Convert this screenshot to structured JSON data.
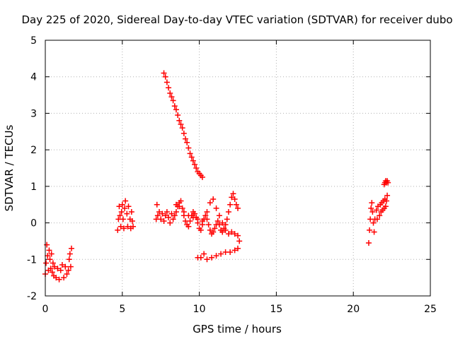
{
  "chart_data": {
    "type": "scatter",
    "title": "Day 225 of 2020, Sidereal Day-to-day VTEC variation (SDTVAR) for receiver dubo",
    "xlabel": "GPS time / hours",
    "ylabel": "SDTVAR / TECUs",
    "xlim": [
      0,
      25
    ],
    "ylim": [
      -2,
      5
    ],
    "xticks": [
      "0",
      "5",
      "10",
      "15",
      "20",
      "25"
    ],
    "yticks": [
      "-2",
      "-1",
      "0",
      "1",
      "2",
      "3",
      "4",
      "5"
    ],
    "grid": true,
    "marker": "+",
    "series": [
      {
        "name": "SDTVAR",
        "color": "#ff0000",
        "points": [
          [
            0.0,
            -1.4
          ],
          [
            0.05,
            -1.1
          ],
          [
            0.1,
            -0.6
          ],
          [
            0.15,
            -0.9
          ],
          [
            0.2,
            -1.3
          ],
          [
            0.25,
            -0.75
          ],
          [
            0.3,
            -1.0
          ],
          [
            0.35,
            -1.25
          ],
          [
            0.4,
            -0.85
          ],
          [
            0.45,
            -1.35
          ],
          [
            0.5,
            -1.1
          ],
          [
            0.55,
            -1.45
          ],
          [
            0.6,
            -1.2
          ],
          [
            0.7,
            -1.5
          ],
          [
            0.8,
            -1.25
          ],
          [
            0.9,
            -1.55
          ],
          [
            1.0,
            -1.3
          ],
          [
            1.1,
            -1.15
          ],
          [
            1.2,
            -1.5
          ],
          [
            1.3,
            -1.2
          ],
          [
            1.4,
            -1.4
          ],
          [
            1.5,
            -1.3
          ],
          [
            1.55,
            -1.0
          ],
          [
            1.6,
            -0.85
          ],
          [
            1.65,
            -1.2
          ],
          [
            1.7,
            -0.7
          ],
          [
            4.7,
            -0.2
          ],
          [
            4.75,
            0.1
          ],
          [
            4.8,
            0.45
          ],
          [
            4.85,
            0.2
          ],
          [
            4.9,
            -0.1
          ],
          [
            4.95,
            0.3
          ],
          [
            5.0,
            0.5
          ],
          [
            5.05,
            0.1
          ],
          [
            5.1,
            -0.15
          ],
          [
            5.15,
            0.4
          ],
          [
            5.2,
            0.6
          ],
          [
            5.3,
            0.25
          ],
          [
            5.35,
            -0.1
          ],
          [
            5.4,
            0.45
          ],
          [
            5.5,
            0.1
          ],
          [
            5.55,
            -0.15
          ],
          [
            5.6,
            0.3
          ],
          [
            5.65,
            0.05
          ],
          [
            5.7,
            -0.1
          ],
          [
            7.2,
            0.1
          ],
          [
            7.25,
            0.5
          ],
          [
            7.3,
            0.2
          ],
          [
            7.4,
            0.3
          ],
          [
            7.5,
            0.1
          ],
          [
            7.6,
            0.25
          ],
          [
            7.7,
            0.05
          ],
          [
            7.8,
            0.2
          ],
          [
            7.9,
            0.3
          ],
          [
            8.0,
            0.15
          ],
          [
            8.1,
            0.0
          ],
          [
            8.2,
            0.25
          ],
          [
            8.3,
            0.1
          ],
          [
            8.4,
            0.2
          ],
          [
            8.5,
            0.3
          ],
          [
            8.6,
            0.45
          ],
          [
            8.7,
            0.55
          ],
          [
            8.8,
            0.6
          ],
          [
            8.9,
            0.4
          ],
          [
            9.0,
            0.2
          ],
          [
            9.1,
            0.05
          ],
          [
            9.2,
            -0.05
          ],
          [
            9.3,
            -0.1
          ],
          [
            9.4,
            0.05
          ],
          [
            9.5,
            0.2
          ],
          [
            9.6,
            0.3
          ],
          [
            9.7,
            0.25
          ],
          [
            9.8,
            0.15
          ],
          [
            9.9,
            0.0
          ],
          [
            10.0,
            -0.15
          ],
          [
            10.1,
            -0.2
          ],
          [
            10.2,
            -0.05
          ],
          [
            10.3,
            0.1
          ],
          [
            10.4,
            0.2
          ],
          [
            10.5,
            0.1
          ],
          [
            10.6,
            -0.05
          ],
          [
            10.7,
            -0.2
          ],
          [
            10.8,
            -0.3
          ],
          [
            10.9,
            -0.25
          ],
          [
            11.0,
            -0.15
          ],
          [
            11.1,
            -0.05
          ],
          [
            11.2,
            0.05
          ],
          [
            11.3,
            -0.05
          ],
          [
            11.4,
            -0.2
          ],
          [
            11.5,
            -0.25
          ],
          [
            11.6,
            -0.15
          ],
          [
            11.7,
            -0.05
          ],
          [
            11.8,
            0.1
          ],
          [
            11.9,
            0.3
          ],
          [
            12.0,
            0.5
          ],
          [
            12.1,
            0.7
          ],
          [
            12.2,
            0.8
          ],
          [
            12.3,
            0.65
          ],
          [
            12.4,
            0.5
          ],
          [
            12.5,
            0.4
          ],
          [
            8.5,
            0.5
          ],
          [
            8.7,
            0.45
          ],
          [
            9.0,
            0.3
          ],
          [
            9.3,
            0.2
          ],
          [
            9.6,
            0.15
          ],
          [
            9.9,
            0.1
          ],
          [
            10.2,
            0.05
          ],
          [
            10.5,
            0.3
          ],
          [
            10.7,
            0.55
          ],
          [
            10.9,
            0.65
          ],
          [
            11.1,
            0.4
          ],
          [
            11.3,
            0.2
          ],
          [
            11.5,
            0.0
          ],
          [
            11.7,
            -0.2
          ],
          [
            11.9,
            -0.3
          ],
          [
            12.1,
            -0.25
          ],
          [
            12.3,
            -0.3
          ],
          [
            12.5,
            -0.35
          ],
          [
            12.6,
            -0.5
          ],
          [
            12.5,
            -0.7
          ],
          [
            12.3,
            -0.75
          ],
          [
            12.0,
            -0.8
          ],
          [
            11.7,
            -0.8
          ],
          [
            11.4,
            -0.85
          ],
          [
            11.1,
            -0.9
          ],
          [
            10.8,
            -0.95
          ],
          [
            10.5,
            -1.0
          ],
          [
            10.3,
            -0.85
          ],
          [
            10.1,
            -0.95
          ],
          [
            9.9,
            -0.95
          ],
          [
            7.7,
            4.1
          ],
          [
            7.8,
            4.0
          ],
          [
            7.9,
            3.85
          ],
          [
            8.0,
            3.7
          ],
          [
            8.1,
            3.55
          ],
          [
            8.2,
            3.45
          ],
          [
            8.3,
            3.35
          ],
          [
            8.4,
            3.2
          ],
          [
            8.5,
            3.1
          ],
          [
            8.6,
            2.95
          ],
          [
            8.7,
            2.8
          ],
          [
            8.8,
            2.7
          ],
          [
            8.9,
            2.6
          ],
          [
            9.0,
            2.45
          ],
          [
            9.1,
            2.3
          ],
          [
            9.2,
            2.2
          ],
          [
            9.3,
            2.05
          ],
          [
            9.4,
            1.9
          ],
          [
            9.5,
            1.8
          ],
          [
            9.6,
            1.7
          ],
          [
            9.7,
            1.6
          ],
          [
            9.8,
            1.5
          ],
          [
            9.9,
            1.4
          ],
          [
            10.0,
            1.35
          ],
          [
            10.1,
            1.3
          ],
          [
            10.2,
            1.25
          ],
          [
            21.0,
            -0.55
          ],
          [
            21.05,
            -0.2
          ],
          [
            21.1,
            0.1
          ],
          [
            21.15,
            0.4
          ],
          [
            21.2,
            0.55
          ],
          [
            21.25,
            0.3
          ],
          [
            21.3,
            0.0
          ],
          [
            21.35,
            -0.25
          ],
          [
            21.4,
            0.1
          ],
          [
            21.5,
            0.35
          ],
          [
            21.55,
            0.1
          ],
          [
            21.6,
            0.45
          ],
          [
            21.7,
            0.2
          ],
          [
            21.75,
            0.5
          ],
          [
            21.8,
            0.3
          ],
          [
            21.85,
            0.55
          ],
          [
            21.9,
            0.35
          ],
          [
            21.95,
            0.6
          ],
          [
            22.0,
            0.4
          ],
          [
            22.05,
            0.65
          ],
          [
            22.1,
            0.45
          ],
          [
            22.15,
            0.6
          ],
          [
            22.2,
            0.75
          ],
          [
            22.0,
            1.05
          ],
          [
            22.05,
            1.1
          ],
          [
            22.1,
            1.15
          ],
          [
            22.15,
            1.1
          ],
          [
            22.2,
            1.15
          ],
          [
            22.25,
            1.1
          ]
        ]
      }
    ]
  }
}
